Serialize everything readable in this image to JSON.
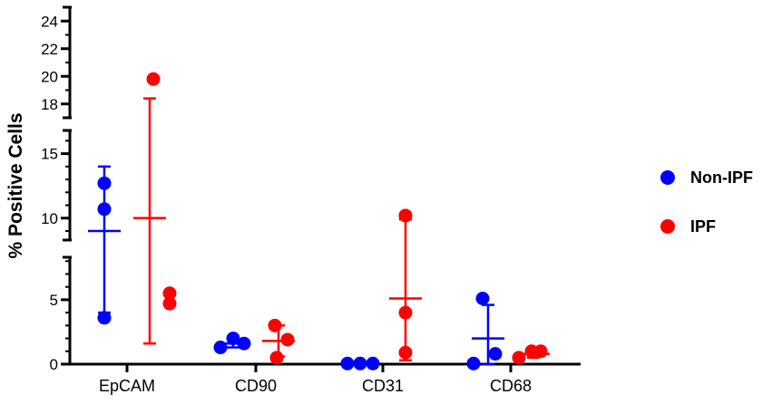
{
  "chart_data": {
    "type": "scatter",
    "title": "",
    "xlabel": "",
    "ylabel": "% Positive Cells",
    "categories": [
      "EpCAM",
      "CD90",
      "CD31",
      "CD68"
    ],
    "y_segments": [
      {
        "range": [
          0,
          8.3
        ],
        "ticks": [
          0,
          5
        ]
      },
      {
        "range": [
          8.3,
          16.8
        ],
        "ticks": [
          10,
          15
        ]
      },
      {
        "range": [
          17,
          25
        ],
        "ticks": [
          18,
          20,
          22,
          24
        ]
      }
    ],
    "grid": false,
    "legend": "right",
    "series": [
      {
        "name": "Non-IPF",
        "color": "#0000FF",
        "points": [
          [
            12.7,
            10.7,
            3.6
          ],
          [
            1.3,
            2.0,
            1.6
          ],
          [
            0.05,
            0.05,
            0.05
          ],
          [
            5.1,
            0.05,
            0.8
          ]
        ],
        "mean": [
          9.0,
          1.6,
          0.05,
          2.0
        ],
        "sd": [
          5.0,
          0.3,
          0.0,
          2.6
        ]
      },
      {
        "name": "IPF",
        "color": "#FF0000",
        "points": [
          [
            19.8,
            4.7,
            5.5
          ],
          [
            3.0,
            1.9,
            0.5
          ],
          [
            10.2,
            4.0,
            0.9
          ],
          [
            0.5,
            1.0,
            1.0
          ]
        ],
        "mean": [
          10.0,
          1.8,
          5.1,
          0.8
        ],
        "sd": [
          8.4,
          1.2,
          4.8,
          0.3
        ]
      }
    ]
  }
}
